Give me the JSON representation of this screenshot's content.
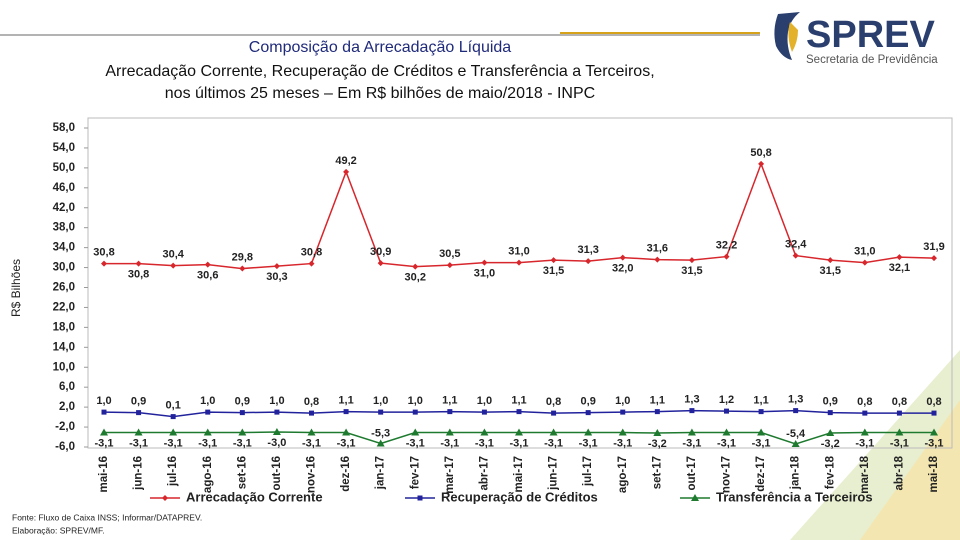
{
  "logo": {
    "name": "SPREV",
    "subtitle": "Secretaria de Previdência"
  },
  "footer": [
    "Fonte: Fluxo de Caixa INSS; Informar/DATAPREV.",
    "Elaboração: SPREV/MF."
  ],
  "chart_data": {
    "type": "line",
    "title": "Composição da Arrecadação Líquida",
    "subtitle": [
      "Arrecadação Corrente, Recuperação de Créditos e Transferência a Terceiros,",
      "nos últimos 25 meses – Em R$ bilhões de maio/2018 - INPC"
    ],
    "y_label": "R$ Bilhões",
    "categories": [
      "mai-16",
      "jun-16",
      "jul-16",
      "ago-16",
      "set-16",
      "out-16",
      "nov-16",
      "dez-16",
      "jan-17",
      "fev-17",
      "mar-17",
      "abr-17",
      "mai-17",
      "jun-17",
      "jul-17",
      "ago-17",
      "set-17",
      "out-17",
      "nov-17",
      "dez-17",
      "jan-18",
      "fev-18",
      "mar-18",
      "abr-18",
      "mai-18"
    ],
    "ylim": [
      -6,
      58
    ],
    "yticks": [
      {
        "value": 58,
        "label": "58,0"
      },
      {
        "value": 54,
        "label": "54,0"
      },
      {
        "value": 50,
        "label": "50,0"
      },
      {
        "value": 46,
        "label": "46,0"
      },
      {
        "value": 42,
        "label": "42,0"
      },
      {
        "value": 38,
        "label": "38,0"
      },
      {
        "value": 34,
        "label": "34,0"
      },
      {
        "value": 30,
        "label": "30,0"
      },
      {
        "value": 26,
        "label": "26,0"
      },
      {
        "value": 22,
        "label": "22,0"
      },
      {
        "value": 18,
        "label": "18,0"
      },
      {
        "value": 14,
        "label": "14,0"
      },
      {
        "value": 10,
        "label": "10,0"
      },
      {
        "value": 6,
        "label": "6,0"
      },
      {
        "value": 2,
        "label": "2,0"
      },
      {
        "value": -2,
        "label": "-2,0"
      },
      {
        "value": -6,
        "label": "-6,0"
      }
    ],
    "legend": "bottom",
    "series": [
      {
        "name": "Arrecadação Corrente",
        "color": "#d7262c",
        "marker": "diamond",
        "values": [
          30.8,
          30.8,
          30.4,
          30.6,
          29.8,
          30.3,
          30.8,
          49.2,
          30.9,
          30.2,
          30.5,
          31.0,
          31.0,
          31.5,
          31.3,
          32.0,
          31.6,
          31.5,
          32.2,
          50.8,
          32.4,
          31.5,
          31.0,
          32.1,
          31.9
        ],
        "value_labels": [
          "30,8",
          "30,8",
          "30,4",
          "30,6",
          "29,8",
          "30,3",
          "30,8",
          "49,2",
          "30,9",
          "30,2",
          "30,5",
          "31,0",
          "31,0",
          "31,5",
          "31,3",
          "32,0",
          "31,6",
          "31,5",
          "32,2",
          "50,8",
          "32,4",
          "31,5",
          "31,0",
          "32,1",
          "31,9"
        ]
      },
      {
        "name": "Recuperação de Créditos",
        "color": "#22239c",
        "marker": "square",
        "values": [
          1.0,
          0.9,
          0.1,
          1.0,
          0.9,
          1.0,
          0.8,
          1.1,
          1.0,
          1.0,
          1.1,
          1.0,
          1.1,
          0.8,
          0.9,
          1.0,
          1.1,
          1.3,
          1.2,
          1.1,
          1.3,
          0.9,
          0.8,
          0.8,
          0.8
        ],
        "value_labels": [
          "1,0",
          "0,9",
          "0,1",
          "1,0",
          "0,9",
          "1,0",
          "0,8",
          "1,1",
          "1,0",
          "1,0",
          "1,1",
          "1,0",
          "1,1",
          "0,8",
          "0,9",
          "1,0",
          "1,1",
          "1,3",
          "1,2",
          "1,1",
          "1,3",
          "0,9",
          "0,8",
          "0,8",
          "0,8"
        ]
      },
      {
        "name": "Transferência a Terceiros",
        "color": "#1e7a2e",
        "marker": "triangle",
        "values": [
          -3.1,
          -3.1,
          -3.1,
          -3.1,
          -3.1,
          -3.0,
          -3.1,
          -3.1,
          -5.3,
          -3.1,
          -3.1,
          -3.1,
          -3.1,
          -3.1,
          -3.1,
          -3.1,
          -3.2,
          -3.1,
          -3.1,
          -3.1,
          -5.4,
          -3.2,
          -3.1,
          -3.1,
          -3.1
        ],
        "value_labels": [
          "-3,1",
          "-3,1",
          "-3,1",
          "-3,1",
          "-3,1",
          "-3,0",
          "-3,1",
          "-3,1",
          "-5,3",
          "-3,1",
          "-3,1",
          "-3,1",
          "-3,1",
          "-3,1",
          "-3,1",
          "-3,1",
          "-3,2",
          "-3,1",
          "-3,1",
          "-3,1",
          "-5,4",
          "-3,2",
          "-3,1",
          "-3,1",
          "-3,1"
        ]
      }
    ]
  }
}
